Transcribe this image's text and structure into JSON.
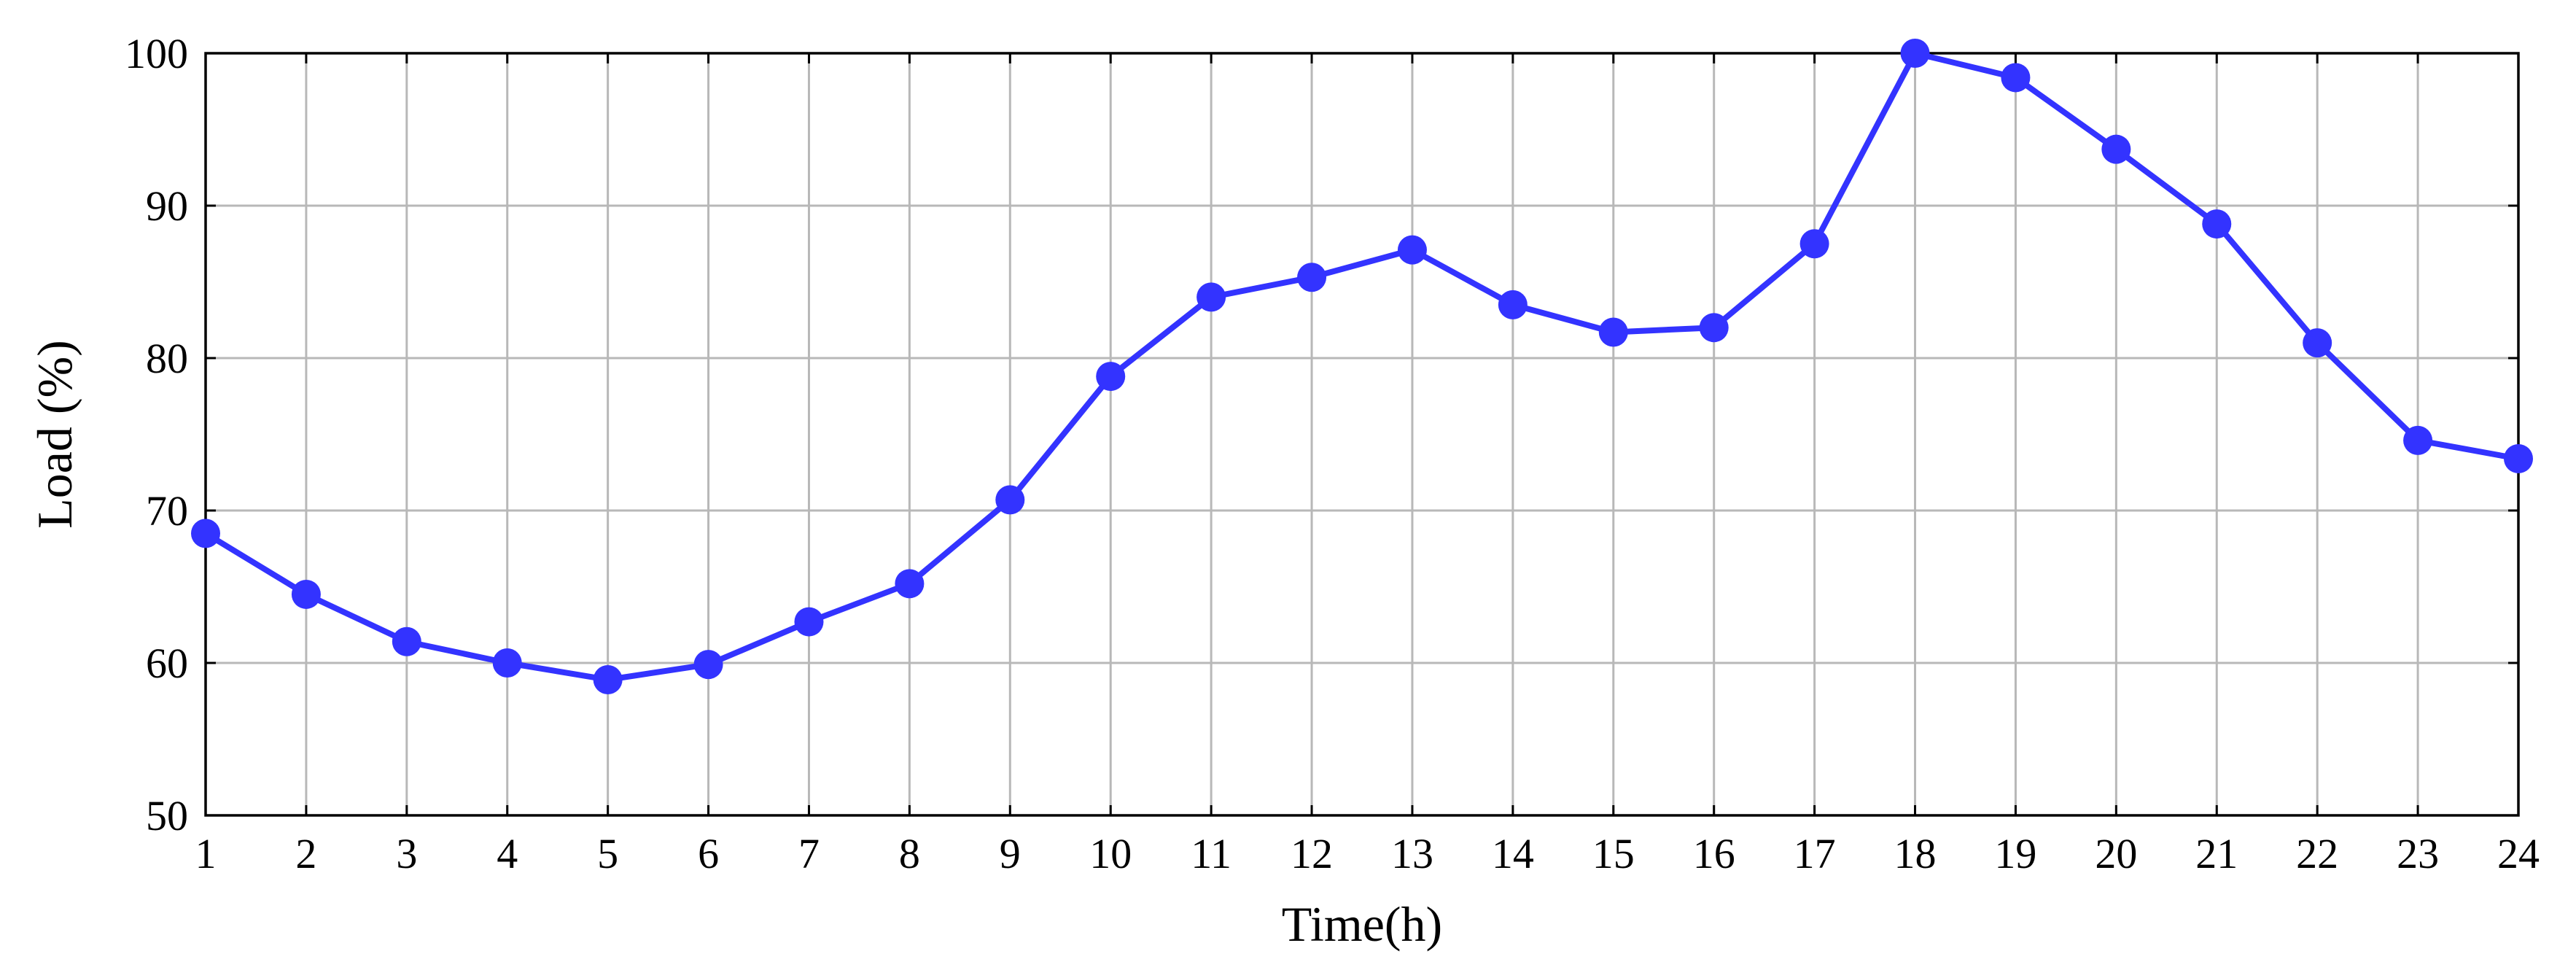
{
  "chart_data": {
    "type": "line",
    "title": "",
    "xlabel": "Time(h)",
    "ylabel": "Load (%)",
    "x": [
      1,
      2,
      3,
      4,
      5,
      6,
      7,
      8,
      9,
      10,
      11,
      12,
      13,
      14,
      15,
      16,
      17,
      18,
      19,
      20,
      21,
      22,
      23,
      24
    ],
    "series": [
      {
        "values": [
          68.5,
          64.5,
          61.4,
          60.0,
          58.9,
          59.9,
          62.7,
          65.2,
          70.7,
          78.8,
          84.0,
          85.3,
          87.1,
          83.5,
          81.7,
          82.0,
          87.5,
          100.0,
          98.4,
          93.7,
          88.8,
          81.0,
          74.6,
          73.4
        ],
        "color": "#3333ff"
      }
    ],
    "xlim": [
      1,
      24
    ],
    "ylim": [
      50,
      100
    ],
    "xticks": [
      "1",
      "2",
      "3",
      "4",
      "5",
      "6",
      "7",
      "8",
      "9",
      "10",
      "11",
      "12",
      "13",
      "14",
      "15",
      "16",
      "17",
      "18",
      "19",
      "20",
      "21",
      "22",
      "23",
      "24"
    ],
    "yticks": [
      "50",
      "60",
      "70",
      "80",
      "90",
      "100"
    ],
    "ytick_values": [
      50,
      60,
      70,
      80,
      90,
      100
    ],
    "grid": true,
    "legend": "none",
    "marker": "circle"
  }
}
